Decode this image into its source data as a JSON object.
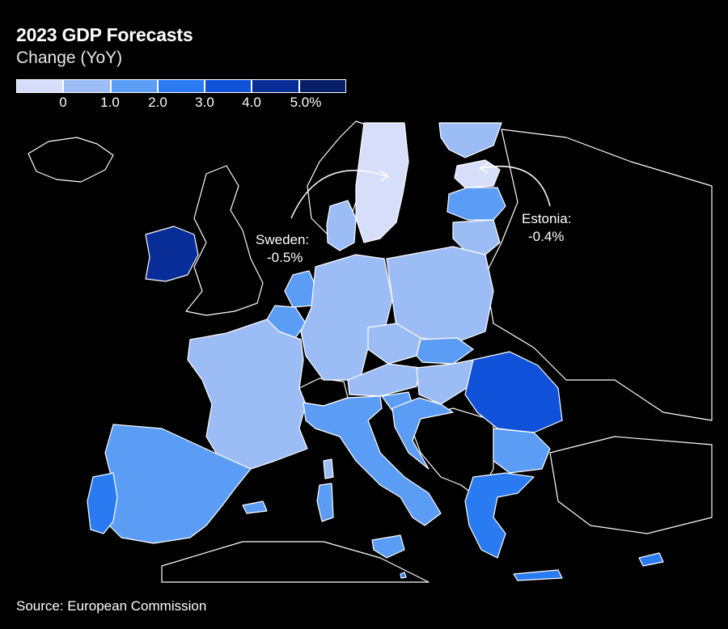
{
  "title": "2023 GDP Forecasts",
  "subtitle": "Change (YoY)",
  "legend": {
    "bins": [
      {
        "color": "#d6def9"
      },
      {
        "color": "#9cbcf5"
      },
      {
        "color": "#5b9cf5"
      },
      {
        "color": "#2a7af2"
      },
      {
        "color": "#0f52d9"
      },
      {
        "color": "#082d96"
      },
      {
        "color": "#061f66"
      }
    ],
    "labels": [
      "0",
      "1.0",
      "2.0",
      "3.0",
      "4.0",
      "5.0%"
    ]
  },
  "annotations": {
    "sweden": {
      "name": "Sweden:",
      "value": "-0.5%"
    },
    "estonia": {
      "name": "Estonia:",
      "value": "-0.4%"
    }
  },
  "source": "Source: European Commission",
  "colors": {
    "background": "#000000",
    "border": "#ffffff",
    "non_eu": "#000000"
  }
}
